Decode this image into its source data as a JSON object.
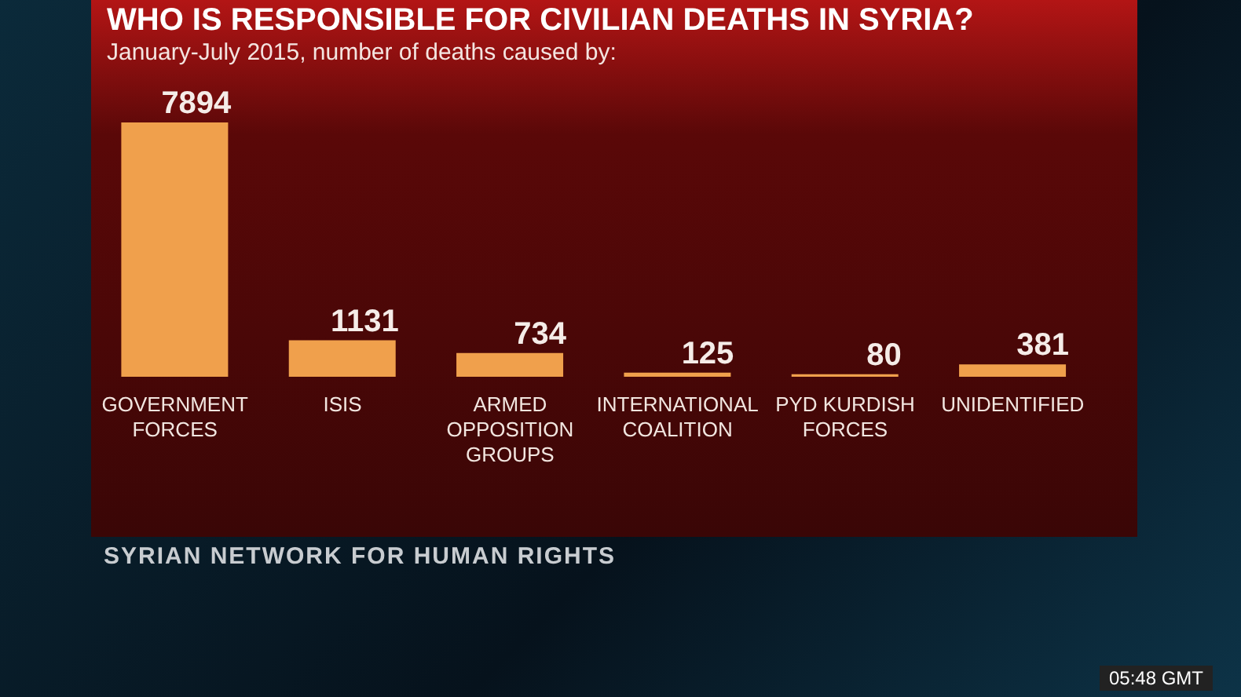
{
  "chart_data": {
    "type": "bar",
    "title": "WHO IS RESPONSIBLE FOR CIVILIAN DEATHS IN SYRIA?",
    "subtitle": "January-July 2015, number of deaths caused by:",
    "categories": [
      "GOVERNMENT FORCES",
      "ISIS",
      "ARMED OPPOSITION GROUPS",
      "INTERNATIONAL COALITION",
      "PYD KURDISH FORCES",
      "UNIDENTIFIED"
    ],
    "values": [
      7894,
      1131,
      734,
      125,
      80,
      381
    ],
    "color": "#f0a04c",
    "data_labels": true,
    "annotations": [
      "SYRIAN NETWORK FOR HUMAN RIGHTS",
      "05:48 GMT"
    ]
  }
}
